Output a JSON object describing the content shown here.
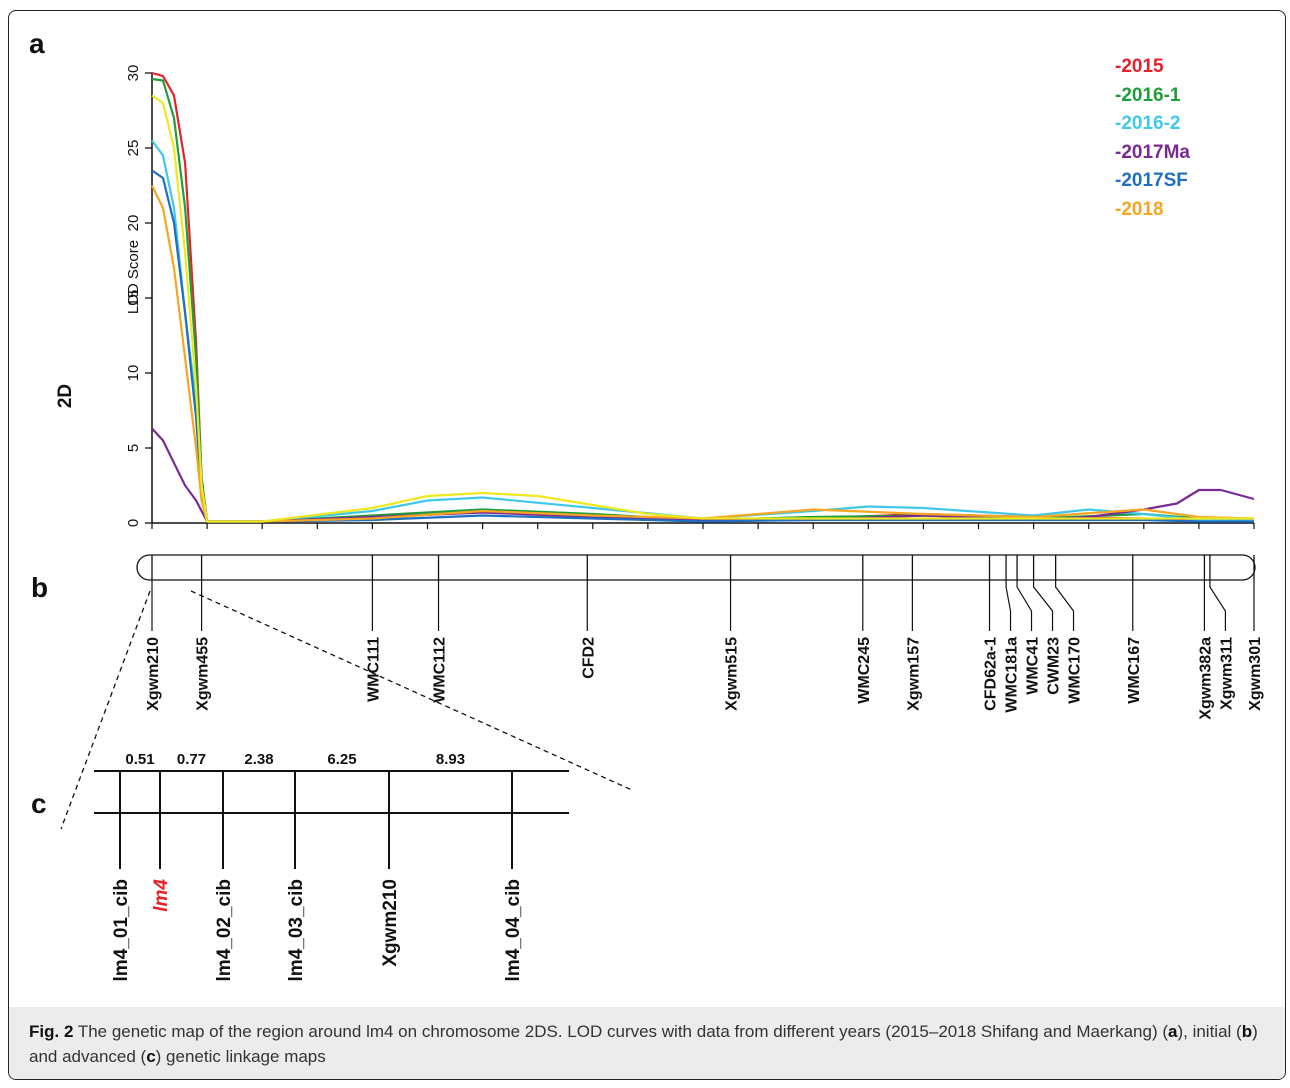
{
  "panel_labels": {
    "a": "a",
    "b": "b",
    "c": "c"
  },
  "chromosome_label": "2D",
  "chart_data": {
    "type": "line",
    "title": "",
    "xlabel": "",
    "ylabel": "LOD Score",
    "ylim": [
      0,
      30
    ],
    "yticks": [
      0,
      5,
      10,
      15,
      20,
      25,
      30
    ],
    "xlim": [
      0,
      100
    ],
    "grid": false,
    "legend_placement": "top-right",
    "series": [
      {
        "name": "-2015",
        "color": "#e8202a",
        "x": [
          0,
          1,
          2,
          3,
          4,
          4.5,
          5,
          6,
          10,
          20,
          30,
          40,
          50,
          60,
          70,
          80,
          90,
          95,
          100
        ],
        "values": [
          30.0,
          29.8,
          28.5,
          24.0,
          12.0,
          3.0,
          0.1,
          0.1,
          0.1,
          0.3,
          0.8,
          0.5,
          0.2,
          0.3,
          0.6,
          0.4,
          0.3,
          0.2,
          0.2
        ]
      },
      {
        "name": "-2016-1",
        "color": "#1e9e3a",
        "x": [
          0,
          1,
          2,
          3,
          4,
          4.5,
          5,
          6,
          10,
          20,
          30,
          40,
          50,
          60,
          70,
          80,
          90,
          95,
          100
        ],
        "values": [
          29.6,
          29.5,
          27.0,
          21.0,
          11.0,
          3.0,
          0.1,
          0.1,
          0.1,
          0.5,
          0.9,
          0.6,
          0.2,
          0.4,
          0.5,
          0.3,
          0.6,
          0.3,
          0.2
        ]
      },
      {
        "name": "-2016-2",
        "color": "#3fc8e8",
        "x": [
          0,
          1,
          2,
          3,
          4,
          4.5,
          5,
          6,
          10,
          20,
          25,
          30,
          40,
          50,
          60,
          65,
          70,
          80,
          85,
          90,
          95,
          100
        ],
        "values": [
          25.5,
          24.5,
          21.0,
          14.0,
          8.0,
          2.5,
          0.1,
          0.1,
          0.1,
          0.8,
          1.5,
          1.7,
          1.0,
          0.3,
          0.8,
          1.1,
          1.0,
          0.5,
          0.9,
          0.6,
          0.2,
          0.2
        ]
      },
      {
        "name": "-2017Ma",
        "color": "#7b2a95",
        "x": [
          0,
          1,
          2,
          3,
          4,
          4.5,
          5,
          6,
          10,
          20,
          30,
          40,
          50,
          60,
          70,
          80,
          85,
          90,
          93,
          95,
          97,
          100
        ],
        "values": [
          6.3,
          5.5,
          4.0,
          2.5,
          1.5,
          0.8,
          0.1,
          0.1,
          0.1,
          0.4,
          0.7,
          0.4,
          0.2,
          0.2,
          0.5,
          0.2,
          0.4,
          0.9,
          1.3,
          2.2,
          2.2,
          1.6
        ]
      },
      {
        "name": "-2017SF",
        "color": "#1f6fc0",
        "x": [
          0,
          1,
          2,
          3,
          4,
          4.5,
          5,
          6,
          10,
          20,
          30,
          40,
          50,
          60,
          70,
          80,
          90,
          95,
          100
        ],
        "values": [
          23.5,
          23.0,
          20.0,
          14.0,
          7.0,
          2.0,
          0.1,
          0.1,
          0.1,
          0.2,
          0.5,
          0.3,
          0.1,
          0.2,
          0.2,
          0.2,
          0.2,
          0.1,
          0.1
        ]
      },
      {
        "name": "-2018",
        "color": "#f5a623",
        "x": [
          0,
          1,
          2,
          3,
          4,
          4.5,
          5,
          6,
          10,
          20,
          30,
          40,
          50,
          60,
          70,
          80,
          90,
          95,
          100
        ],
        "values": [
          22.5,
          21.0,
          17.0,
          11.0,
          5.0,
          1.5,
          0.1,
          0.1,
          0.1,
          0.3,
          0.8,
          0.5,
          0.3,
          0.9,
          0.6,
          0.4,
          0.9,
          0.4,
          0.3
        ]
      },
      {
        "name": "",
        "color": "#f0e81e",
        "x": [
          0,
          1,
          2,
          3,
          4,
          4.5,
          5,
          6,
          10,
          20,
          25,
          30,
          35,
          40,
          45,
          50,
          60,
          70,
          80,
          90,
          95,
          100
        ],
        "values": [
          28.5,
          28.0,
          25.0,
          18.0,
          9.0,
          2.5,
          0.1,
          0.1,
          0.1,
          1.0,
          1.8,
          2.0,
          1.8,
          1.2,
          0.6,
          0.3,
          0.3,
          0.3,
          0.3,
          0.3,
          0.3,
          0.3
        ]
      }
    ]
  },
  "map_b": {
    "markers": [
      {
        "name": "Xgwm210",
        "pos": 0.0
      },
      {
        "name": "Xgwm455",
        "pos": 4.5
      },
      {
        "name": "WMC111",
        "pos": 20.0
      },
      {
        "name": "WMC112",
        "pos": 26.0
      },
      {
        "name": "CFD2",
        "pos": 39.5
      },
      {
        "name": "Xgwm515",
        "pos": 52.5
      },
      {
        "name": "WMC245",
        "pos": 64.5
      },
      {
        "name": "Xgwm157",
        "pos": 69.0
      },
      {
        "name": "CFD62a-1",
        "pos": 76.0
      },
      {
        "name": "WMC181a",
        "pos": 77.5
      },
      {
        "name": "WMC41",
        "pos": 78.5
      },
      {
        "name": "CWM23",
        "pos": 80.0
      },
      {
        "name": "WMC170",
        "pos": 82.0
      },
      {
        "name": "WMC167",
        "pos": 89.0
      },
      {
        "name": "Xgwm382a",
        "pos": 95.5
      },
      {
        "name": "Xgwm311",
        "pos": 96.0
      },
      {
        "name": "Xgwm301",
        "pos": 100.0
      }
    ]
  },
  "map_c": {
    "intervals": [
      "0.51",
      "0.77",
      "2.38",
      "6.25",
      "8.93"
    ],
    "markers": [
      {
        "name": "lm4_01_cib",
        "highlight": false
      },
      {
        "name": "lm4",
        "highlight": true
      },
      {
        "name": "lm4_02_cib",
        "highlight": false
      },
      {
        "name": "lm4_03_cib",
        "highlight": false
      },
      {
        "name": "Xgwm210",
        "highlight": false
      },
      {
        "name": "lm4_04_cib",
        "highlight": false
      }
    ]
  },
  "caption": {
    "fig_label": "Fig. 2",
    "text_1": " The genetic map of the region around lm4 on chromosome 2DS. LOD curves with data from different years (2015–2018 Shifang and Maerkang) (",
    "a": "a",
    "text_2": "), initial (",
    "b": "b",
    "text_3": ") and advanced (",
    "c": "c",
    "text_4": ") genetic linkage maps"
  }
}
